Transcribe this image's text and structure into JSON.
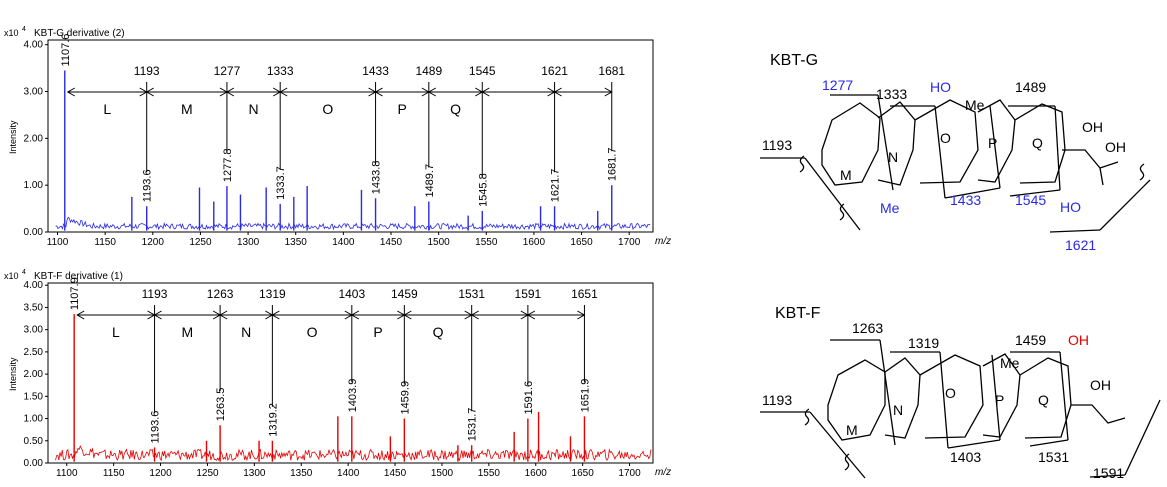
{
  "chart_data": [
    {
      "type": "line",
      "title": "KBT-G derivative (2)",
      "exponent_label": "x10",
      "exponent": "4",
      "ylabel": "Intensity",
      "xlabel": "m/z",
      "xlim": [
        1090,
        1725
      ],
      "ylim": [
        0,
        4.1
      ],
      "xticks": [
        "1100",
        "1150",
        "1200",
        "1250",
        "1300",
        "1350",
        "1400",
        "1450",
        "1500",
        "1550",
        "1600",
        "1650",
        "1700"
      ],
      "yticks": [
        "0.00",
        "1.00",
        "2.00",
        "3.00",
        "4.00"
      ],
      "color": "#2a2ae6",
      "peaks": [
        {
          "mz": 1107.6,
          "y": 3.45,
          "label": "1107.6"
        },
        {
          "mz": 1178,
          "y": 0.75
        },
        {
          "mz": 1193.6,
          "y": 0.55,
          "label": "1193.6"
        },
        {
          "mz": 1249,
          "y": 0.95
        },
        {
          "mz": 1264,
          "y": 0.65
        },
        {
          "mz": 1277.8,
          "y": 0.98,
          "label": "1277.8"
        },
        {
          "mz": 1292,
          "y": 0.8
        },
        {
          "mz": 1319,
          "y": 0.95
        },
        {
          "mz": 1333.7,
          "y": 0.6,
          "label": "1333.7"
        },
        {
          "mz": 1348,
          "y": 0.75
        },
        {
          "mz": 1362,
          "y": 0.98
        },
        {
          "mz": 1419,
          "y": 0.9
        },
        {
          "mz": 1433.8,
          "y": 0.72,
          "label": "1433.8"
        },
        {
          "mz": 1475,
          "y": 0.55
        },
        {
          "mz": 1489.7,
          "y": 0.65,
          "label": "1489.7"
        },
        {
          "mz": 1531,
          "y": 0.35
        },
        {
          "mz": 1545.8,
          "y": 0.45,
          "label": "1545.8"
        },
        {
          "mz": 1607,
          "y": 0.55
        },
        {
          "mz": 1621.7,
          "y": 0.55,
          "label": "1621.7"
        },
        {
          "mz": 1667,
          "y": 0.45
        },
        {
          "mz": 1681.7,
          "y": 1.0,
          "label": "1681.7"
        }
      ],
      "fragments": [
        {
          "mz": 1107.6,
          "label": ""
        },
        {
          "mz": 1193.6,
          "label": "1193"
        },
        {
          "mz": 1277.8,
          "label": "1277"
        },
        {
          "mz": 1333.7,
          "label": "1333"
        },
        {
          "mz": 1433.8,
          "label": "1433"
        },
        {
          "mz": 1489.7,
          "label": "1489"
        },
        {
          "mz": 1545.8,
          "label": "1545"
        },
        {
          "mz": 1621.7,
          "label": "1621"
        },
        {
          "mz": 1681.7,
          "label": "1681"
        }
      ],
      "segments": [
        "L",
        "M",
        "N",
        "O",
        "P",
        "Q",
        "",
        ""
      ]
    },
    {
      "type": "line",
      "title": "KBT-F derivative (1)",
      "exponent_label": "x10",
      "exponent": "4",
      "ylabel": "Intensity",
      "xlabel": "m/z",
      "xlim": [
        1080,
        1725
      ],
      "ylim": [
        0,
        4.05
      ],
      "xticks": [
        "1100",
        "1150",
        "1200",
        "1250",
        "1300",
        "1350",
        "1400",
        "1450",
        "1500",
        "1550",
        "1600",
        "1650",
        "1700"
      ],
      "yticks": [
        "0.00",
        "0.50",
        "1.00",
        "1.50",
        "2.00",
        "2.50",
        "3.00",
        "3.50",
        "4.00"
      ],
      "color": "#e60000",
      "peaks": [
        {
          "mz": 1107.9,
          "y": 3.35,
          "label": "1107.9"
        },
        {
          "mz": 1193.6,
          "y": 0.35,
          "label": "1193.6"
        },
        {
          "mz": 1249,
          "y": 0.5
        },
        {
          "mz": 1263.5,
          "y": 0.85,
          "label": "1263.5"
        },
        {
          "mz": 1305,
          "y": 0.5
        },
        {
          "mz": 1319.2,
          "y": 0.5,
          "label": "1319.2"
        },
        {
          "mz": 1389,
          "y": 1.05
        },
        {
          "mz": 1403.9,
          "y": 1.05,
          "label": "1403.9"
        },
        {
          "mz": 1445,
          "y": 0.6
        },
        {
          "mz": 1459.9,
          "y": 1.0,
          "label": "1459.9"
        },
        {
          "mz": 1517,
          "y": 0.4
        },
        {
          "mz": 1531.7,
          "y": 0.4,
          "label": "1531.7"
        },
        {
          "mz": 1577,
          "y": 0.7
        },
        {
          "mz": 1591.6,
          "y": 1.0,
          "label": "1591.6"
        },
        {
          "mz": 1603,
          "y": 1.15
        },
        {
          "mz": 1637,
          "y": 0.6
        },
        {
          "mz": 1651.9,
          "y": 1.05,
          "label": "1651.9"
        }
      ],
      "fragments": [
        {
          "mz": 1107.9,
          "label": ""
        },
        {
          "mz": 1193.6,
          "label": "1193"
        },
        {
          "mz": 1263.5,
          "label": "1263"
        },
        {
          "mz": 1319.2,
          "label": "1319"
        },
        {
          "mz": 1403.9,
          "label": "1403"
        },
        {
          "mz": 1459.9,
          "label": "1459"
        },
        {
          "mz": 1531.7,
          "label": "1531"
        },
        {
          "mz": 1591.6,
          "label": "1591"
        },
        {
          "mz": 1651.9,
          "label": "1651"
        }
      ],
      "segments": [
        "L",
        "M",
        "N",
        "O",
        "P",
        "Q",
        "",
        ""
      ]
    }
  ],
  "structures": [
    {
      "name": "KBT-G",
      "ring_labels": [
        "M",
        "N",
        "O",
        "P",
        "Q"
      ],
      "black_labels": [
        "1193",
        "1333",
        "1489"
      ],
      "blue_labels": [
        "1277",
        "1433",
        "1545",
        "1621"
      ],
      "groups_black": [
        "Me",
        "OH",
        "OH"
      ],
      "groups_blue": [
        "HO",
        "HO",
        "Me"
      ],
      "accent": "#2a2ae6"
    },
    {
      "name": "KBT-F",
      "ring_labels": [
        "M",
        "N",
        "O",
        "P",
        "Q"
      ],
      "black_labels": [
        "1263",
        "1319",
        "1459",
        "1193",
        "1403",
        "1531",
        "1591"
      ],
      "groups_black": [
        "Me",
        "OH"
      ],
      "groups_red": [
        "OH"
      ],
      "accent": "#e60000"
    }
  ]
}
